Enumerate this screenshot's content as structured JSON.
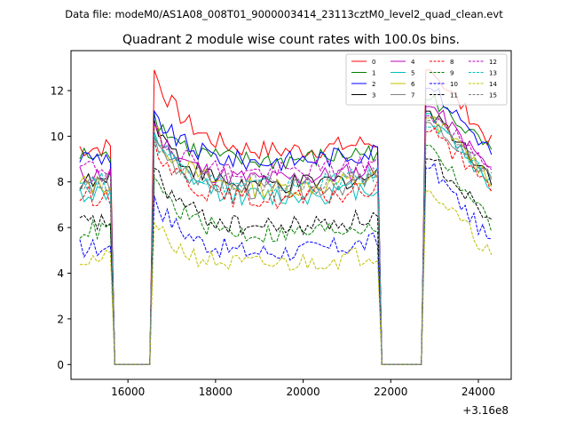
{
  "header": {
    "data_file": "Data file: modeM0/AS1A08_008T01_9000003414_23113cztM0_level2_quad_clean.evt"
  },
  "chart_data": {
    "type": "line",
    "title": "Quadrant 2 module wise count rates with 100.0s bins.",
    "xlabel": "",
    "ylabel": "",
    "x_offset_label": "+3.16e8",
    "xlim": [
      14700,
      24750
    ],
    "ylim": [
      -0.65,
      13.75
    ],
    "xticks": [
      16000,
      18000,
      20000,
      22000,
      24000
    ],
    "yticks": [
      0,
      2,
      4,
      6,
      8,
      10,
      12
    ],
    "legend_position": "top-right",
    "x_grid": {
      "start": 14900,
      "step": 100,
      "count": 95
    },
    "envelope": {
      "off1_start": 15700,
      "off1_end": 16550,
      "rise1": 16650,
      "off2_start": 21800,
      "off2_end": 22800,
      "rise2": 22950,
      "end": 24300
    },
    "series": [
      {
        "name": "0",
        "color": "#ff0000",
        "dash": "solid",
        "base": 9.3,
        "peak1": 12.9,
        "peak2": 12.9
      },
      {
        "name": "1",
        "color": "#008000",
        "dash": "solid",
        "base": 8.9,
        "peak1": 11.0,
        "peak2": 11.6
      },
      {
        "name": "2",
        "color": "#0000ff",
        "dash": "solid",
        "base": 8.9,
        "peak1": 11.1,
        "peak2": 12.1
      },
      {
        "name": "3",
        "color": "#000000",
        "dash": "solid",
        "base": 7.8,
        "peak1": 10.7,
        "peak2": 11.1
      },
      {
        "name": "4",
        "color": "#bf00bf",
        "dash": "solid",
        "base": 8.1,
        "peak1": 10.5,
        "peak2": 11.3
      },
      {
        "name": "5",
        "color": "#00bfbf",
        "dash": "solid",
        "base": 7.3,
        "peak1": 10.2,
        "peak2": 11.0
      },
      {
        "name": "6",
        "color": "#bfbf00",
        "dash": "solid",
        "base": 7.7,
        "peak1": 10.4,
        "peak2": 10.8
      },
      {
        "name": "7",
        "color": "#808080",
        "dash": "solid",
        "base": 7.6,
        "peak1": 10.0,
        "peak2": 10.6
      },
      {
        "name": "8",
        "color": "#ff0000",
        "dash": "dashed",
        "base": 7.2,
        "peak1": 9.8,
        "peak2": 10.2
      },
      {
        "name": "9",
        "color": "#008000",
        "dash": "dashed",
        "base": 5.7,
        "peak1": 8.2,
        "peak2": 9.6
      },
      {
        "name": "10",
        "color": "#0000ff",
        "dash": "dashed",
        "base": 4.9,
        "peak1": 7.4,
        "peak2": 8.6
      },
      {
        "name": "11",
        "color": "#000000",
        "dash": "dashed",
        "base": 6.0,
        "peak1": 8.6,
        "peak2": 9.0
      },
      {
        "name": "12",
        "color": "#bf00bf",
        "dash": "dashed",
        "base": 8.4,
        "peak1": 10.6,
        "peak2": 10.9
      },
      {
        "name": "13",
        "color": "#00bfbf",
        "dash": "dashed",
        "base": 7.8,
        "peak1": 10.1,
        "peak2": 10.4
      },
      {
        "name": "14",
        "color": "#bfbf00",
        "dash": "dashed",
        "base": 4.4,
        "peak1": 6.2,
        "peak2": 7.6
      },
      {
        "name": "15",
        "color": "#808080",
        "dash": "dashed",
        "base": 7.9,
        "peak1": 10.0,
        "peak2": 10.7
      }
    ]
  }
}
